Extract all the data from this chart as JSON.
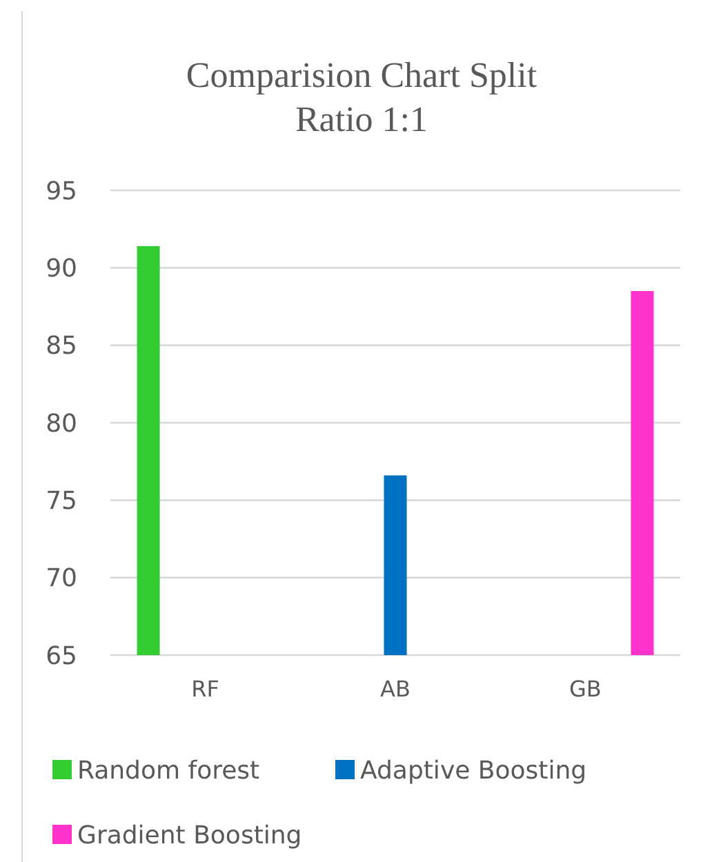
{
  "chart_data": {
    "type": "bar",
    "title": "Comparision Chart Split Ratio 1:1",
    "categories": [
      "RF",
      "AB",
      "GB"
    ],
    "series": [
      {
        "name": "Random forest",
        "color": "#33cc33",
        "values": [
          91.4,
          null,
          null
        ]
      },
      {
        "name": "Adaptive Boosting",
        "color": "#0070c0",
        "values": [
          null,
          76.6,
          null
        ]
      },
      {
        "name": "Gradient Boosting",
        "color": "#ff33cc",
        "values": [
          null,
          null,
          88.5
        ]
      }
    ],
    "ylim": [
      65,
      95
    ],
    "yticks": [
      65,
      70,
      75,
      80,
      85,
      90,
      95
    ],
    "grid": "y",
    "legend": "bottom"
  }
}
